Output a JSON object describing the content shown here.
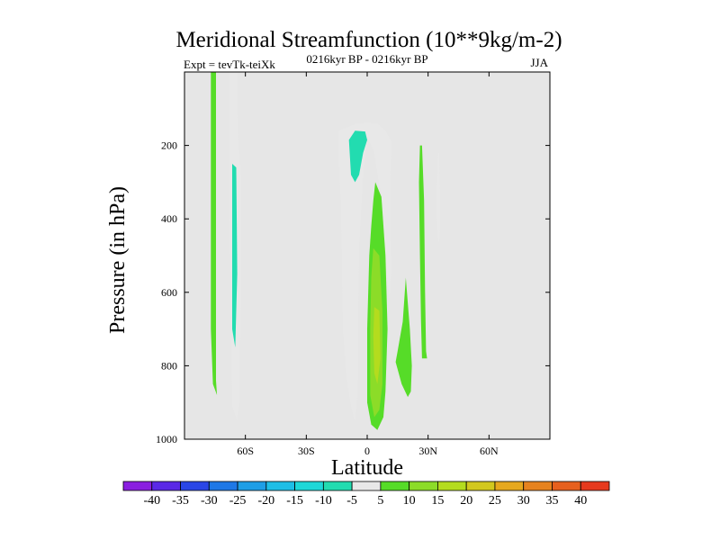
{
  "chart_data": {
    "type": "heatmap",
    "title": "Meridional Streamfunction (10**9kg/m-2)",
    "left_label": "Expt = tevTk-teiXk",
    "center_label": "0216kyr BP - 0216kyr BP",
    "right_label": "JJA",
    "xlabel": "Latitude",
    "ylabel": "Pressure (in hPa)",
    "xlim": [
      -90,
      90
    ],
    "ylim": [
      1000,
      0
    ],
    "x_ticks": [
      {
        "value": -60,
        "label": "60S"
      },
      {
        "value": -30,
        "label": "30S"
      },
      {
        "value": 0,
        "label": "0"
      },
      {
        "value": 30,
        "label": "30N"
      },
      {
        "value": 60,
        "label": "60N"
      }
    ],
    "y_ticks": [
      {
        "value": 200,
        "label": "200"
      },
      {
        "value": 400,
        "label": "400"
      },
      {
        "value": 600,
        "label": "600"
      },
      {
        "value": 800,
        "label": "800"
      },
      {
        "value": 1000,
        "label": "1000"
      }
    ],
    "colorbar": {
      "labels": [
        "-40",
        "-35",
        "-30",
        "-25",
        "-20",
        "-15",
        "-10",
        "-5",
        "5",
        "10",
        "15",
        "20",
        "25",
        "30",
        "35",
        "40"
      ],
      "colors": [
        "#8a1ee0",
        "#5a28e6",
        "#2a46e6",
        "#1e78e6",
        "#1e9ee6",
        "#1ebee6",
        "#1ed8d8",
        "#22dcb0",
        "#e8e8e8",
        "#56dc28",
        "#8cdc28",
        "#b4dc1e",
        "#d2c81e",
        "#e6a81e",
        "#e6821e",
        "#e6601e",
        "#e63a1e"
      ]
    },
    "features": [
      {
        "name": "green-strip-far-south",
        "value": 5,
        "points": [
          [
            -77,
            0
          ],
          [
            -74.5,
            0
          ],
          [
            -74.5,
            330
          ],
          [
            -74.5,
            840
          ],
          [
            -74,
            880
          ],
          [
            -76,
            850
          ],
          [
            -77,
            700
          ]
        ]
      },
      {
        "name": "cyan-strip-south",
        "value": -5,
        "points": [
          [
            -68,
            0
          ],
          [
            -64,
            0
          ],
          [
            -63.5,
            200
          ],
          [
            -62,
            300
          ],
          [
            -62,
            600
          ],
          [
            -63,
            800
          ],
          [
            -63,
            900
          ],
          [
            -64,
            950
          ],
          [
            -66.5,
            910
          ],
          [
            -67,
            700
          ],
          [
            -68,
            400
          ]
        ]
      },
      {
        "name": "blue-strip-south-core",
        "value": -10,
        "points": [
          [
            -66.5,
            250
          ],
          [
            -64.5,
            260
          ],
          [
            -64,
            550
          ],
          [
            -65,
            750
          ],
          [
            -66.5,
            700
          ]
        ]
      },
      {
        "name": "cyan-equatorial-blob",
        "value": -5,
        "points": [
          [
            -14,
            160
          ],
          [
            -5,
            140
          ],
          [
            0,
            138
          ],
          [
            5,
            140
          ],
          [
            9,
            160
          ],
          [
            12,
            190
          ],
          [
            11.5,
            320
          ],
          [
            11.5,
            420
          ],
          [
            12,
            540
          ],
          [
            11,
            620
          ],
          [
            9,
            500
          ],
          [
            7,
            340
          ],
          [
            3,
            210
          ],
          [
            0,
            180
          ],
          [
            -2,
            280
          ],
          [
            -3,
            380
          ],
          [
            -4,
            480
          ],
          [
            -4.5,
            700
          ],
          [
            -4.5,
            820
          ],
          [
            -5,
            890
          ],
          [
            -6,
            950
          ],
          [
            -8,
            910
          ],
          [
            -10,
            840
          ],
          [
            -12,
            700
          ],
          [
            -12.5,
            500
          ],
          [
            -13,
            350
          ],
          [
            -14,
            250
          ]
        ]
      },
      {
        "name": "blue-equatorial-core",
        "value": -10,
        "points": [
          [
            -9,
            185
          ],
          [
            -6,
            160
          ],
          [
            -1,
            162
          ],
          [
            0,
            185
          ],
          [
            -2,
            220
          ],
          [
            -4,
            280
          ],
          [
            -6,
            300
          ],
          [
            -8,
            280
          ]
        ]
      },
      {
        "name": "green-equatorial-main",
        "value": 5,
        "points": [
          [
            4,
            300
          ],
          [
            7,
            340
          ],
          [
            9,
            500
          ],
          [
            10,
            700
          ],
          [
            9,
            870
          ],
          [
            8,
            940
          ],
          [
            5,
            975
          ],
          [
            2,
            960
          ],
          [
            0,
            900
          ],
          [
            0,
            700
          ],
          [
            1,
            500
          ],
          [
            2,
            420
          ],
          [
            3,
            350
          ]
        ]
      },
      {
        "name": "lime-equatorial-inner",
        "value": 10,
        "points": [
          [
            3,
            480
          ],
          [
            6,
            500
          ],
          [
            7.5,
            650
          ],
          [
            7.5,
            850
          ],
          [
            6,
            920
          ],
          [
            3.5,
            940
          ],
          [
            1.5,
            880
          ],
          [
            1.5,
            700
          ],
          [
            2,
            560
          ]
        ]
      },
      {
        "name": "yellow-equatorial-core",
        "value": 15,
        "points": [
          [
            3.5,
            640
          ],
          [
            6,
            650
          ],
          [
            6.5,
            780
          ],
          [
            5,
            850
          ],
          [
            3.5,
            820
          ],
          [
            3,
            720
          ]
        ]
      },
      {
        "name": "green-nh-drop",
        "value": 5,
        "points": [
          [
            19,
            560
          ],
          [
            21,
            700
          ],
          [
            22,
            800
          ],
          [
            21.5,
            870
          ],
          [
            20,
            885
          ],
          [
            17,
            850
          ],
          [
            14,
            790
          ],
          [
            15,
            760
          ],
          [
            17.5,
            680
          ]
        ]
      },
      {
        "name": "green-nh-strip",
        "value": 5,
        "points": [
          [
            26,
            200
          ],
          [
            27,
            200
          ],
          [
            28,
            350
          ],
          [
            28.5,
            600
          ],
          [
            29,
            760
          ],
          [
            29.5,
            780
          ],
          [
            27,
            780
          ],
          [
            26.5,
            680
          ],
          [
            26,
            500
          ],
          [
            25.5,
            300
          ]
        ]
      },
      {
        "name": "cyan-nh-strip",
        "value": -5,
        "points": [
          [
            35,
            220
          ],
          [
            35.5,
            220
          ],
          [
            36,
            400
          ],
          [
            35.5,
            470
          ],
          [
            34.5,
            440
          ],
          [
            34,
            350
          ],
          [
            34.5,
            270
          ]
        ]
      }
    ]
  }
}
